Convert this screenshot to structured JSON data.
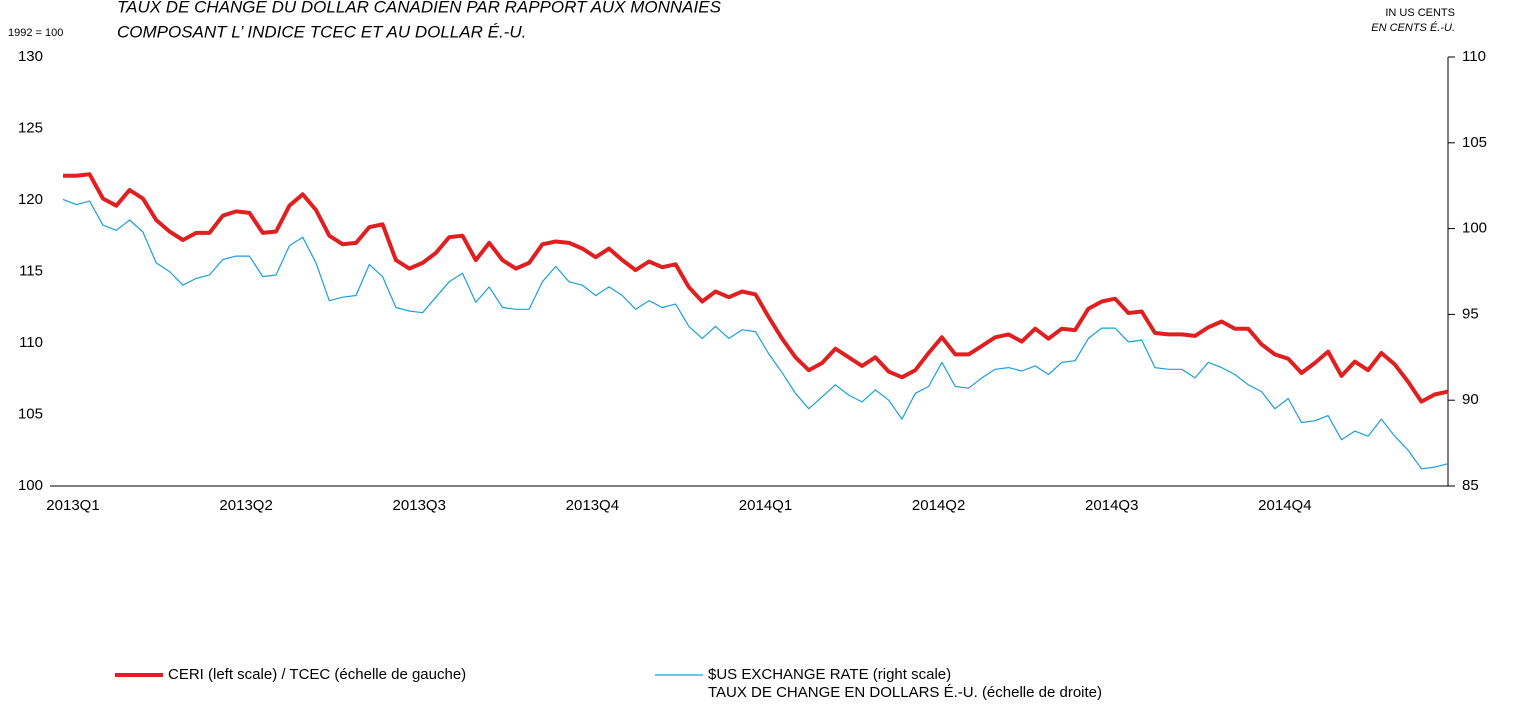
{
  "chart_data": {
    "type": "line",
    "title": [
      "TAUX DE CHANGE DU DOLLAR CANADIEN PAR RAPPORT AUX MONNAIES",
      "COMPOSANT L’ INDICE TCEC ET AU DOLLAR É.-U."
    ],
    "ylabel": "1992 = 100",
    "y2label": [
      "IN US CENTS",
      "EN CENTS É.-U."
    ],
    "categories": [
      "2013Q1",
      null,
      null,
      null,
      null,
      null,
      null,
      null,
      null,
      null,
      null,
      null,
      null,
      "2013Q2",
      null,
      null,
      null,
      null,
      null,
      null,
      null,
      null,
      null,
      null,
      null,
      null,
      "2013Q3",
      null,
      null,
      null,
      null,
      null,
      null,
      null,
      null,
      null,
      null,
      null,
      null,
      "2013Q4",
      null,
      null,
      null,
      null,
      null,
      null,
      null,
      null,
      null,
      null,
      null,
      null,
      "2014Q1",
      null,
      null,
      null,
      null,
      null,
      null,
      null,
      null,
      null,
      null,
      null,
      null,
      "2014Q2",
      null,
      null,
      null,
      null,
      null,
      null,
      null,
      null,
      null,
      null,
      null,
      null,
      "2014Q3",
      null,
      null,
      null,
      null,
      null,
      null,
      null,
      null,
      null,
      null,
      null,
      null,
      "2014Q4",
      null,
      null,
      null,
      null,
      null,
      null,
      null,
      null,
      null,
      null,
      null,
      null,
      null
    ],
    "ylim": [
      100,
      130
    ],
    "yticks": [
      100,
      105,
      110,
      115,
      120,
      125,
      130
    ],
    "y2lim": [
      85,
      110
    ],
    "y2ticks": [
      85,
      90,
      95,
      100,
      105,
      110
    ],
    "series": [
      {
        "name": "CERI (left scale) / TCEC (échelle de gauche)",
        "color": "#e02020",
        "width": 4,
        "values": [
          121.7,
          121.7,
          121.8,
          120.1,
          119.6,
          120.7,
          120.1,
          118.6,
          117.8,
          117.2,
          117.7,
          117.7,
          118.9,
          119.2,
          119.1,
          117.7,
          117.8,
          119.6,
          120.4,
          119.3,
          117.5,
          116.9,
          117.0,
          118.1,
          118.3,
          115.8,
          115.2,
          115.6,
          116.3,
          117.4,
          117.5,
          115.8,
          117.0,
          115.8,
          115.2,
          115.6,
          116.9,
          117.1,
          117.0,
          116.6,
          116.0,
          116.6,
          115.8,
          115.1,
          115.7,
          115.3,
          115.5,
          113.9,
          112.9,
          113.6,
          113.2,
          113.6,
          113.4,
          111.8,
          110.3,
          109.0,
          108.1,
          108.6,
          109.6,
          109.0,
          108.4,
          109.0,
          108.0,
          107.6,
          108.1,
          109.3,
          110.4,
          109.2,
          109.2,
          109.8,
          110.4,
          110.6,
          110.1,
          111.0,
          110.3,
          111.0,
          110.9,
          112.4,
          112.9,
          113.1,
          112.1,
          112.2,
          110.7,
          110.6,
          110.6,
          110.5,
          111.1,
          111.5,
          111.0,
          111.0,
          109.9,
          109.2,
          108.9,
          107.9,
          108.6,
          109.4,
          107.7,
          108.7,
          108.1,
          109.3,
          108.5,
          107.3,
          105.9,
          106.4,
          106.6
        ]
      },
      {
        "name": "$US EXCHANGE RATE (right scale)\nTAUX DE CHANGE EN DOLLARS É.-U. (échelle de droite)",
        "color": "#1aa0d8",
        "width": 1.2,
        "axis": "y2",
        "values": [
          101.7,
          101.4,
          101.6,
          100.2,
          99.9,
          100.5,
          99.8,
          98.0,
          97.5,
          96.7,
          97.1,
          97.3,
          98.2,
          98.4,
          98.4,
          97.2,
          97.3,
          99.0,
          99.5,
          98.0,
          95.8,
          96.0,
          96.1,
          97.9,
          97.2,
          95.4,
          95.2,
          95.1,
          96.0,
          96.9,
          97.4,
          95.7,
          96.6,
          95.4,
          95.3,
          95.3,
          96.9,
          97.8,
          96.9,
          96.7,
          96.1,
          96.6,
          96.1,
          95.3,
          95.8,
          95.4,
          95.6,
          94.3,
          93.6,
          94.3,
          93.6,
          94.1,
          94.0,
          92.7,
          91.6,
          90.4,
          89.5,
          90.2,
          90.9,
          90.3,
          89.9,
          90.6,
          90.0,
          88.9,
          90.4,
          90.8,
          92.2,
          90.8,
          90.7,
          91.3,
          91.8,
          91.9,
          91.7,
          92.0,
          91.5,
          92.2,
          92.3,
          93.6,
          94.2,
          94.2,
          93.4,
          93.5,
          91.9,
          91.8,
          91.8,
          91.3,
          92.2,
          91.9,
          91.5,
          90.9,
          90.5,
          89.5,
          90.1,
          88.7,
          88.8,
          89.1,
          87.7,
          88.2,
          87.9,
          88.9,
          87.9,
          87.1,
          86.0,
          86.1,
          86.3
        ]
      }
    ]
  }
}
